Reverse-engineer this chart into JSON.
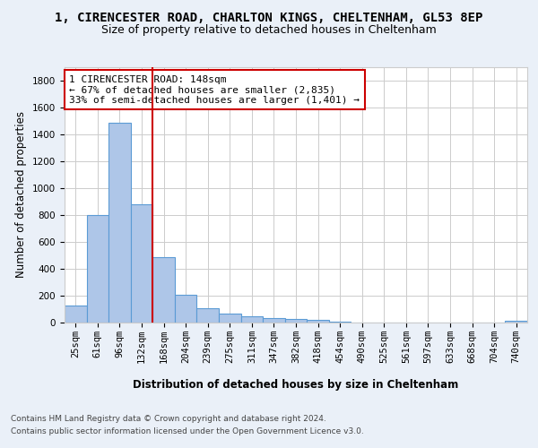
{
  "title": "1, CIRENCESTER ROAD, CHARLTON KINGS, CHELTENHAM, GL53 8EP",
  "subtitle": "Size of property relative to detached houses in Cheltenham",
  "xlabel": "Distribution of detached houses by size in Cheltenham",
  "ylabel": "Number of detached properties",
  "categories": [
    "25sqm",
    "61sqm",
    "96sqm",
    "132sqm",
    "168sqm",
    "204sqm",
    "239sqm",
    "275sqm",
    "311sqm",
    "347sqm",
    "382sqm",
    "418sqm",
    "454sqm",
    "490sqm",
    "525sqm",
    "561sqm",
    "597sqm",
    "633sqm",
    "668sqm",
    "704sqm",
    "740sqm"
  ],
  "values": [
    125,
    800,
    1490,
    880,
    490,
    205,
    105,
    65,
    45,
    35,
    30,
    20,
    10,
    0,
    0,
    0,
    0,
    0,
    0,
    0,
    15
  ],
  "bar_color": "#aec6e8",
  "bar_edgecolor": "#5b9bd5",
  "vline_x": 3.5,
  "vline_color": "#cc0000",
  "annotation_text": "1 CIRENCESTER ROAD: 148sqm\n← 67% of detached houses are smaller (2,835)\n33% of semi-detached houses are larger (1,401) →",
  "annotation_box_color": "#ffffff",
  "annotation_box_edgecolor": "#cc0000",
  "ylim": [
    0,
    1900
  ],
  "yticks": [
    0,
    200,
    400,
    600,
    800,
    1000,
    1200,
    1400,
    1600,
    1800
  ],
  "bg_color": "#eaf0f8",
  "plot_bg_color": "#ffffff",
  "footer1": "Contains HM Land Registry data © Crown copyright and database right 2024.",
  "footer2": "Contains public sector information licensed under the Open Government Licence v3.0.",
  "title_fontsize": 10,
  "subtitle_fontsize": 9,
  "axis_label_fontsize": 8.5,
  "tick_fontsize": 7.5,
  "annotation_fontsize": 8,
  "footer_fontsize": 6.5
}
